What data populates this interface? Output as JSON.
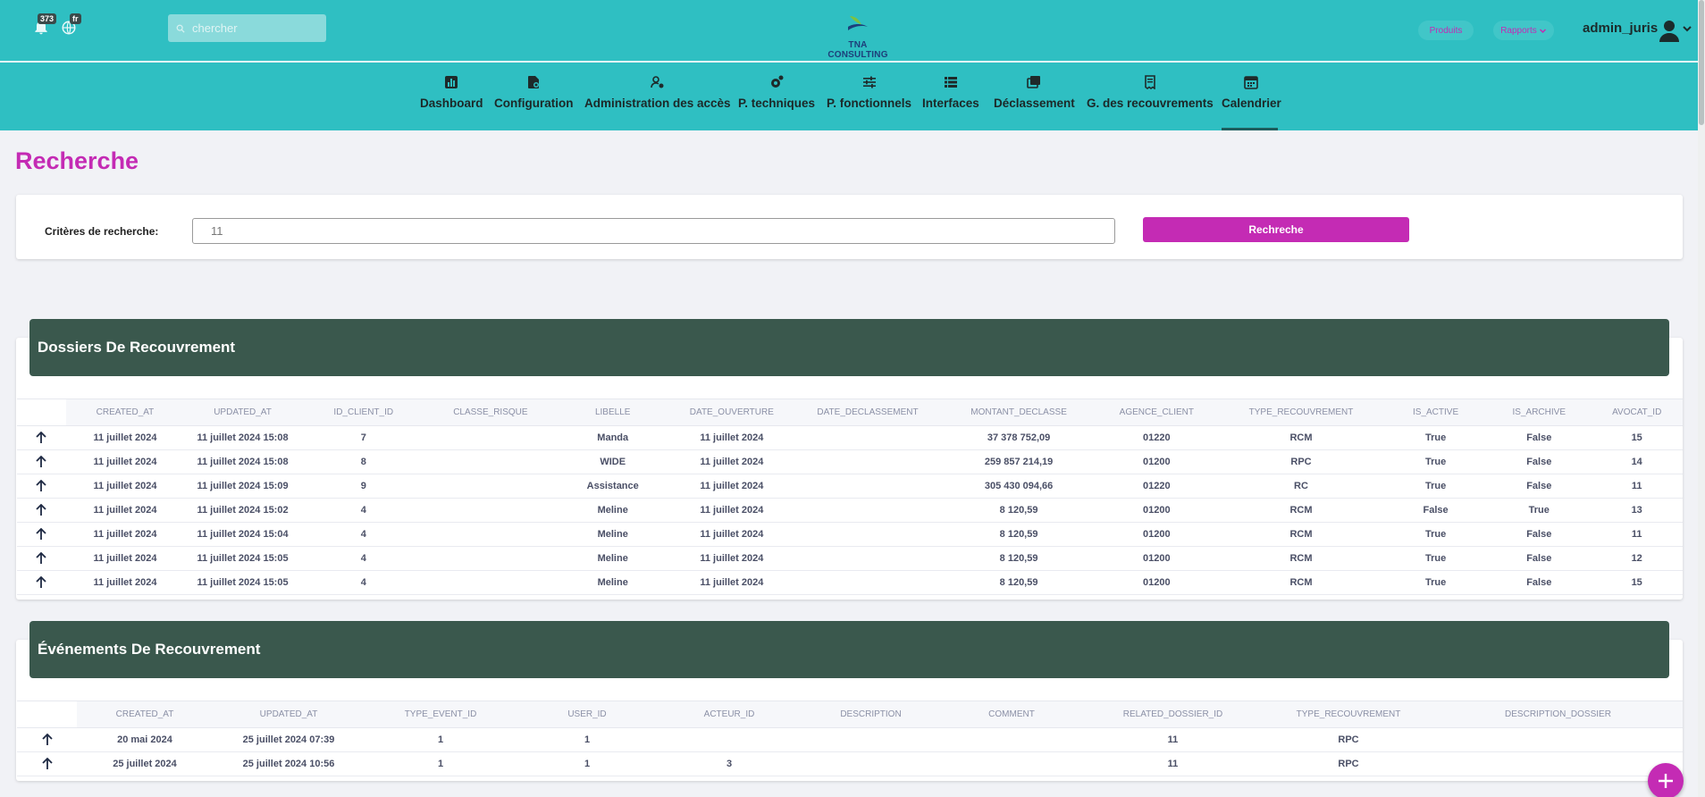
{
  "header": {
    "notification_count": "373",
    "language": "fr",
    "search_placeholder": "chercher",
    "logo_text": "TNA CONSULTING",
    "produits_label": "Produits",
    "rapports_label": "Rapports",
    "username": "admin_juris"
  },
  "nav": [
    {
      "label": "Dashboard",
      "icon": "bar-chart-icon"
    },
    {
      "label": "Configuration",
      "icon": "config-icon"
    },
    {
      "label": "Administration des accès",
      "icon": "user-gear-icon"
    },
    {
      "label": "P. techniques",
      "icon": "gear-icon"
    },
    {
      "label": "P. fonctionnels",
      "icon": "sliders-icon"
    },
    {
      "label": "Interfaces",
      "icon": "list-icon"
    },
    {
      "label": "Déclassement",
      "icon": "layers-icon"
    },
    {
      "label": "G. des recouvrements",
      "icon": "receipt-icon"
    },
    {
      "label": "Calendrier",
      "icon": "calendar-icon"
    }
  ],
  "page": {
    "title": "Recherche",
    "criteria_label": "Critères de recherche:",
    "criteria_value": "11",
    "search_button": "Rechreche"
  },
  "dossiers": {
    "title": "Dossiers De Recouvrement",
    "columns": [
      "CREATED_AT",
      "UPDATED_AT",
      "ID_CLIENT_ID",
      "CLASSE_RISQUE",
      "LIBELLE",
      "DATE_OUVERTURE",
      "DATE_DECLASSEMENT",
      "MONTANT_DECLASSE",
      "AGENCE_CLIENT",
      "TYPE_RECOUVREMENT",
      "IS_ACTIVE",
      "IS_ARCHIVE",
      "AVOCAT_ID"
    ],
    "rows": [
      [
        "11 juillet 2024",
        "11 juillet 2024 15:08",
        "7",
        "",
        "Manda",
        "11 juillet 2024",
        "",
        "37 378 752,09",
        "01220",
        "RCM",
        "True",
        "False",
        "15"
      ],
      [
        "11 juillet 2024",
        "11 juillet 2024 15:08",
        "8",
        "",
        "WIDE",
        "11 juillet 2024",
        "",
        "259 857 214,19",
        "01200",
        "RPC",
        "True",
        "False",
        "14"
      ],
      [
        "11 juillet 2024",
        "11 juillet 2024 15:09",
        "9",
        "",
        "Assistance",
        "11 juillet 2024",
        "",
        "305 430 094,66",
        "01220",
        "RC",
        "True",
        "False",
        "11"
      ],
      [
        "11 juillet 2024",
        "11 juillet 2024 15:02",
        "4",
        "",
        "Meline",
        "11 juillet 2024",
        "",
        "8 120,59",
        "01200",
        "RCM",
        "False",
        "True",
        "13"
      ],
      [
        "11 juillet 2024",
        "11 juillet 2024 15:04",
        "4",
        "",
        "Meline",
        "11 juillet 2024",
        "",
        "8 120,59",
        "01200",
        "RCM",
        "True",
        "False",
        "11"
      ],
      [
        "11 juillet 2024",
        "11 juillet 2024 15:05",
        "4",
        "",
        "Meline",
        "11 juillet 2024",
        "",
        "8 120,59",
        "01200",
        "RCM",
        "True",
        "False",
        "12"
      ],
      [
        "11 juillet 2024",
        "11 juillet 2024 15:05",
        "4",
        "",
        "Meline",
        "11 juillet 2024",
        "",
        "8 120,59",
        "01200",
        "RCM",
        "True",
        "False",
        "15"
      ]
    ]
  },
  "events": {
    "title": "Événements De Recouvrement",
    "columns": [
      "CREATED_AT",
      "UPDATED_AT",
      "TYPE_EVENT_ID",
      "USER_ID",
      "ACTEUR_ID",
      "DESCRIPTION",
      "COMMENT",
      "RELATED_DOSSIER_ID",
      "TYPE_RECOUVREMENT",
      "DESCRIPTION_DOSSIER"
    ],
    "rows": [
      [
        "20 mai 2024",
        "25 juillet 2024 07:39",
        "1",
        "1",
        "",
        "",
        "",
        "11",
        "RPC",
        ""
      ],
      [
        "25 juillet 2024",
        "25 juillet 2024 10:56",
        "1",
        "1",
        "3",
        "",
        "",
        "11",
        "RPC",
        ""
      ]
    ]
  },
  "colors": {
    "header_bg": "#2fbfc2",
    "accent": "#c42bb4",
    "table_header_bg": "#3a584d"
  }
}
